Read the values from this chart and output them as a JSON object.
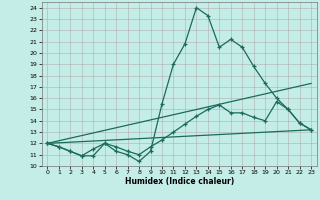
{
  "xlabel": "Humidex (Indice chaleur)",
  "bg_color": "#c5ede8",
  "grid_color": "#b0b0b0",
  "line_color": "#1a6b5a",
  "xlim": [
    -0.5,
    23.5
  ],
  "ylim": [
    10,
    24.5
  ],
  "yticks": [
    10,
    11,
    12,
    13,
    14,
    15,
    16,
    17,
    18,
    19,
    20,
    21,
    22,
    23,
    24
  ],
  "xticks": [
    0,
    1,
    2,
    3,
    4,
    5,
    6,
    7,
    8,
    9,
    10,
    11,
    12,
    13,
    14,
    15,
    16,
    17,
    18,
    19,
    20,
    21,
    22,
    23
  ],
  "line1_x": [
    0,
    1,
    2,
    3,
    4,
    5,
    6,
    7,
    8,
    9,
    10,
    11,
    12,
    13,
    14,
    15,
    16,
    17,
    18,
    19,
    20,
    21,
    22,
    23
  ],
  "line1_y": [
    12,
    11.7,
    11.3,
    10.9,
    10.9,
    12,
    11.3,
    11,
    10.4,
    11.3,
    15.5,
    19,
    20.8,
    24,
    23.3,
    20.5,
    21.2,
    20.5,
    18.8,
    17.3,
    16,
    15,
    13.8,
    13.2
  ],
  "line2_x": [
    0,
    1,
    2,
    3,
    4,
    5,
    6,
    7,
    8,
    9,
    10,
    11,
    12,
    13,
    14,
    15,
    16,
    17,
    18,
    19,
    20,
    21,
    22,
    23
  ],
  "line2_y": [
    12,
    11.7,
    11.3,
    10.9,
    11.5,
    12,
    11.7,
    11.3,
    11.0,
    11.7,
    12.3,
    13.0,
    13.7,
    14.4,
    15.0,
    15.4,
    14.7,
    14.7,
    14.3,
    14.0,
    15.7,
    15.0,
    13.8,
    13.2
  ],
  "line3_x": [
    0,
    23
  ],
  "line3_y": [
    12,
    13.2
  ],
  "line4_x": [
    0,
    23
  ],
  "line4_y": [
    12,
    17.3
  ]
}
